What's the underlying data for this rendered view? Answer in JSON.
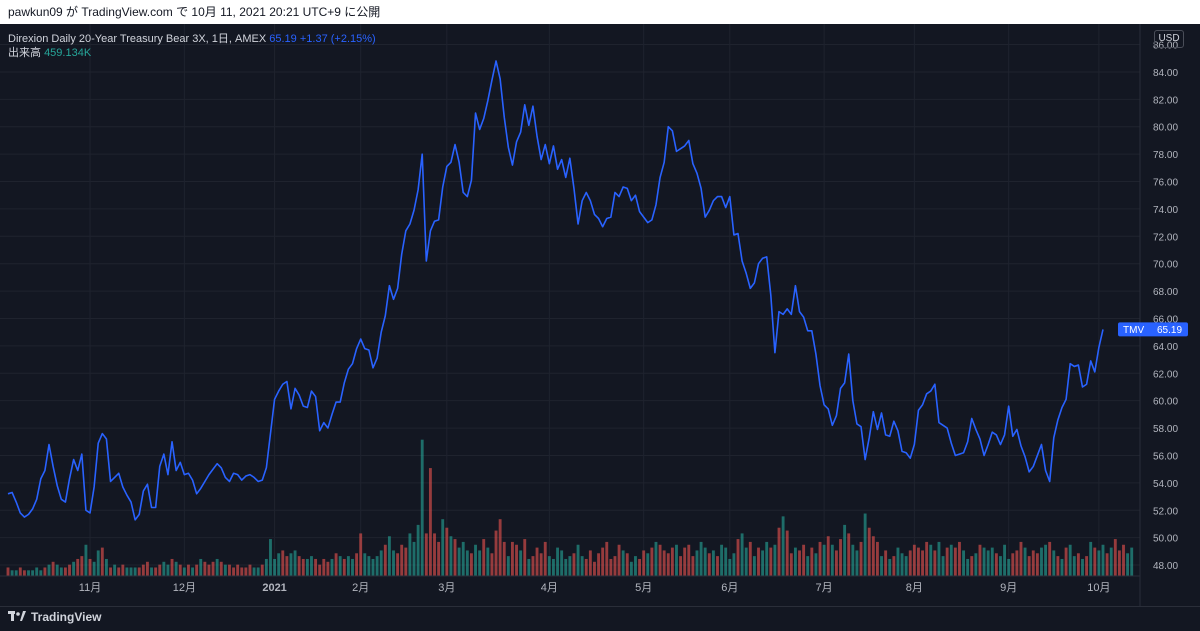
{
  "header": {
    "caption": "pawkun09 が TradingView.com で 10月 11, 2021 20:21 UTC+9 に公開"
  },
  "legend": {
    "symbol_text": "Direxion Daily 20-Year Treasury Bear 3X, 1日, AMEX",
    "last": "65.19",
    "change": "+1.37 (+2.15%)",
    "volume_label": "出来高",
    "volume_value": "459.134K"
  },
  "currency": "USD",
  "price_tag": {
    "symbol": "TMV",
    "value": "65.19"
  },
  "footer": {
    "brand": "TradingView"
  },
  "colors": {
    "line": "#2962ff",
    "up_volume": "#26a69a",
    "down_volume": "#ef5350",
    "background": "#131722",
    "grid": "#1f232e"
  },
  "chart_data": {
    "type": "line",
    "ylim": [
      47.2,
      87.5
    ],
    "y_ticks": [
      "86.00",
      "84.00",
      "82.00",
      "80.00",
      "78.00",
      "76.00",
      "74.00",
      "72.00",
      "70.00",
      "68.00",
      "66.00",
      "64.00",
      "62.00",
      "60.00",
      "58.00",
      "56.00",
      "54.00",
      "52.00",
      "50.00",
      "48.00"
    ],
    "x_tick_labels": [
      "11月",
      "12月",
      "2021",
      "2月",
      "3月",
      "4月",
      "5月",
      "6月",
      "7月",
      "8月",
      "9月",
      "10月"
    ],
    "x_tick_index": [
      20,
      43,
      65,
      86,
      107,
      132,
      155,
      176,
      199,
      221,
      244,
      266
    ],
    "series": [
      {
        "values": [
          53.2,
          53.3,
          52.6,
          51.8,
          51.5,
          51.7,
          52.1,
          52.8,
          54.3,
          54.9,
          56.8,
          55.2,
          53.8,
          52.8,
          52.6,
          54.3,
          55.7,
          54.9,
          56.1,
          52.0,
          51.8,
          53.7,
          56.9,
          57.6,
          57.2,
          54.1,
          54.4,
          54.7,
          53.7,
          53.1,
          52.6,
          51.3,
          51.7,
          53.4,
          53.9,
          52.2,
          52.2,
          55.2,
          56.1,
          54.6,
          57.0,
          54.9,
          55.5,
          54.6,
          54.7,
          54.2,
          53.2,
          53.6,
          54.1,
          54.6,
          55.0,
          55.4,
          55.1,
          54.4,
          54.1,
          54.7,
          54.6,
          54.2,
          54.5,
          54.6,
          54.4,
          54.1,
          54.2,
          55.1,
          57.6,
          60.1,
          60.7,
          61.2,
          61.4,
          59.4,
          60.9,
          60.4,
          59.6,
          59.5,
          60.7,
          60.3,
          57.8,
          58.4,
          58.0,
          59.0,
          59.9,
          59.9,
          61.3,
          62.3,
          62.7,
          63.8,
          64.5,
          63.8,
          63.7,
          62.4,
          63.1,
          65.0,
          66.2,
          68.4,
          67.4,
          68.2,
          70.7,
          72.4,
          72.9,
          73.9,
          75.4,
          78.0,
          70.2,
          72.4,
          73.1,
          73.2,
          75.6,
          77.1,
          77.4,
          78.7,
          77.4,
          75.2,
          74.9,
          76.1,
          81.0,
          79.8,
          80.6,
          81.9,
          83.4,
          84.8,
          83.5,
          80.7,
          78.5,
          77.2,
          78.9,
          79.6,
          81.6,
          80.1,
          81.5,
          79.3,
          77.6,
          78.7,
          77.3,
          78.6,
          76.9,
          77.6,
          76.3,
          77.7,
          75.5,
          72.9,
          74.6,
          75.2,
          74.6,
          73.6,
          73.3,
          72.7,
          73.3,
          73.4,
          75.2,
          74.9,
          75.6,
          75.5,
          74.6,
          75.0,
          73.8,
          73.4,
          73.0,
          73.2,
          74.3,
          76.3,
          77.4,
          80.0,
          79.7,
          78.2,
          78.4,
          78.6,
          79.0,
          77.3,
          76.6,
          75.5,
          73.4,
          73.9,
          74.6,
          74.9,
          74.9,
          74.1,
          74.9,
          72.1,
          72.2,
          70.2,
          69.3,
          68.2,
          68.6,
          70.0,
          70.4,
          70.5,
          67.7,
          63.5,
          66.5,
          66.3,
          66.7,
          66.3,
          68.4,
          66.5,
          66.1,
          65.1,
          65.1,
          63.4,
          61.1,
          59.7,
          59.4,
          58.2,
          58.9,
          60.9,
          61.3,
          63.4,
          60.0,
          58.3,
          58.1,
          55.7,
          57.3,
          59.2,
          57.9,
          59.1,
          57.5,
          57.4,
          58.5,
          57.8,
          56.3,
          56.2,
          55.8,
          56.8,
          59.3,
          59.7,
          60.5,
          60.7,
          61.2,
          58.4,
          58.2,
          58.0,
          56.9,
          56.0,
          56.1,
          56.2,
          57.0,
          58.7,
          57.9,
          57.2,
          56.0,
          56.8,
          57.7,
          57.5,
          56.8,
          57.5,
          59.6,
          57.4,
          57.9,
          56.7,
          55.9,
          54.8,
          55.2,
          56.0,
          56.8,
          54.9,
          54.1,
          57.3,
          58.6,
          59.5,
          60.1,
          62.7,
          62.5,
          62.6,
          61.0,
          61.2,
          62.9,
          62.1,
          63.9,
          65.2
        ]
      }
    ],
    "volume": {
      "values": [
        3,
        2,
        2,
        3,
        2,
        2,
        2,
        3,
        2,
        3,
        4,
        5,
        4,
        3,
        3,
        4,
        5,
        6,
        7,
        11,
        6,
        5,
        9,
        10,
        6,
        3,
        4,
        3,
        4,
        3,
        3,
        3,
        3,
        4,
        5,
        3,
        3,
        4,
        5,
        4,
        6,
        5,
        4,
        3,
        4,
        3,
        4,
        6,
        5,
        4,
        5,
        6,
        5,
        4,
        4,
        3,
        4,
        3,
        3,
        4,
        3,
        3,
        4,
        6,
        13,
        6,
        8,
        9,
        7,
        8,
        9,
        7,
        6,
        6,
        7,
        6,
        4,
        6,
        5,
        6,
        8,
        7,
        6,
        7,
        6,
        8,
        15,
        8,
        7,
        6,
        7,
        9,
        11,
        14,
        9,
        8,
        11,
        10,
        15,
        12,
        18,
        48,
        15,
        38,
        15,
        12,
        20,
        17,
        14,
        13,
        10,
        12,
        9,
        8,
        11,
        9,
        13,
        10,
        8,
        16,
        20,
        12,
        7,
        12,
        11,
        9,
        13,
        6,
        7,
        10,
        8,
        12,
        7,
        6,
        10,
        9,
        6,
        7,
        8,
        11,
        7,
        6,
        9,
        5,
        8,
        10,
        12,
        6,
        7,
        11,
        9,
        8,
        5,
        7,
        6,
        9,
        8,
        10,
        12,
        11,
        9,
        8,
        10,
        11,
        7,
        10,
        11,
        7,
        9,
        12,
        10,
        8,
        9,
        7,
        11,
        10,
        6,
        8,
        13,
        15,
        10,
        12,
        7,
        10,
        9,
        12,
        10,
        11,
        17,
        21,
        16,
        8,
        10,
        9,
        11,
        7,
        10,
        8,
        12,
        11,
        14,
        11,
        9,
        13,
        18,
        15,
        11,
        9,
        12,
        22,
        17,
        14,
        12,
        7,
        9,
        6,
        7,
        10,
        8,
        7,
        9,
        11,
        10,
        9,
        12,
        11,
        9,
        12,
        7,
        10,
        11,
        10,
        12,
        9,
        6,
        7,
        8,
        11,
        10,
        9,
        10,
        8,
        7,
        11,
        6,
        8,
        9,
        12,
        10,
        7,
        9,
        8,
        10,
        11,
        12,
        9,
        7,
        6,
        10,
        11,
        7,
        8,
        6,
        7,
        12,
        10,
        9,
        11,
        8,
        10,
        13,
        9,
        11,
        8,
        10
      ],
      "up": [
        0,
        1,
        1,
        0,
        0,
        1,
        1,
        1,
        1,
        0,
        1,
        0,
        1,
        1,
        0,
        0,
        1,
        0,
        0,
        1,
        0,
        1,
        1,
        0,
        1,
        0,
        1,
        0,
        0,
        1,
        1,
        1,
        0,
        0,
        0,
        1,
        0,
        0,
        1,
        1,
        0,
        1,
        0,
        1,
        0,
        1,
        0,
        1,
        0,
        0,
        0,
        1,
        0,
        1,
        0,
        0,
        0,
        0,
        0,
        0,
        1,
        1,
        0,
        1,
        1,
        1,
        1,
        0,
        0,
        1,
        1,
        0,
        0,
        1,
        1,
        0,
        0,
        0,
        0,
        1,
        0,
        1,
        0,
        1,
        1,
        0,
        0,
        1,
        1,
        1,
        1,
        1,
        0,
        1,
        1,
        0,
        0,
        0,
        1,
        1,
        1,
        1,
        0,
        0,
        0,
        0,
        1,
        0,
        1,
        0,
        1,
        1,
        1,
        0,
        1,
        1,
        0,
        1,
        0,
        0,
        0,
        0,
        1,
        0,
        0,
        1,
        0,
        1,
        0,
        0,
        0,
        0,
        1,
        1,
        1,
        1,
        1,
        1,
        0,
        1,
        1,
        0,
        0,
        0,
        0,
        0,
        0,
        0,
        0,
        0,
        1,
        0,
        1,
        1,
        0,
        0,
        1,
        0,
        1,
        0,
        0,
        0,
        0,
        1,
        0,
        0,
        0,
        0,
        1,
        1,
        1,
        0,
        1,
        0,
        1,
        1,
        1,
        1,
        0,
        1,
        1,
        0,
        1,
        0,
        1,
        1,
        0,
        1,
        0,
        1,
        0,
        0,
        1,
        0,
        0,
        1,
        0,
        1,
        0,
        1,
        0,
        1,
        0,
        0,
        1,
        0,
        1,
        1,
        0,
        1,
        0,
        0,
        0,
        1,
        0,
        1,
        0,
        1,
        1,
        1,
        0,
        0,
        0,
        0,
        0,
        1,
        0,
        1,
        1,
        0,
        1,
        0,
        0,
        1,
        1,
        0,
        1,
        0,
        1,
        1,
        1,
        0,
        1,
        1,
        1,
        0,
        0,
        0,
        1,
        0,
        0,
        0,
        1,
        1,
        0,
        1,
        0,
        1,
        0,
        1,
        1,
        0,
        1,
        0,
        1,
        0,
        1,
        1,
        0,
        1,
        0,
        0,
        0,
        1,
        1,
        0,
        1,
        0,
        1,
        1,
        0,
        1,
        0,
        0,
        1
      ]
    }
  }
}
